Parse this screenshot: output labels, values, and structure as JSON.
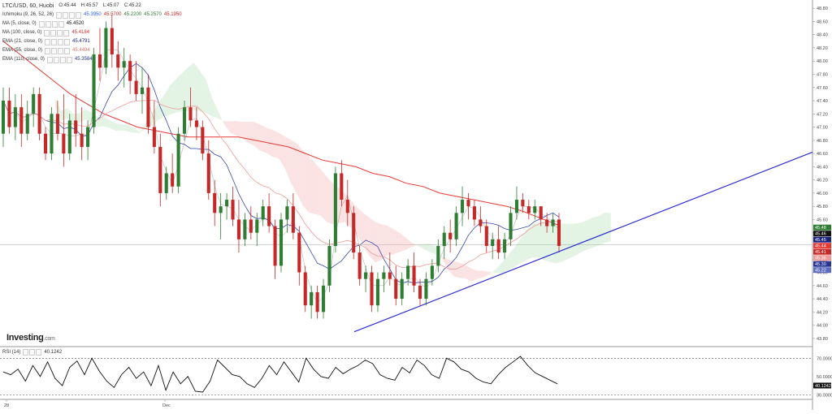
{
  "header": {
    "symbol": "LTC/USD, 60, Huobi",
    "open": "O:45.44",
    "high": "H:45.57",
    "low": "L:45.07",
    "close": "C:45.22"
  },
  "indicators": [
    {
      "label": "Ichimoku (9, 26, 52, 26)",
      "values": [
        {
          "v": "45.3950",
          "color": "#2962ff"
        },
        {
          "v": "45.5700",
          "color": "#c62828"
        },
        {
          "v": "45.2200",
          "color": "#2e7d32"
        },
        {
          "v": "45.2570",
          "color": "#2e7d32"
        },
        {
          "v": "45.1950",
          "color": "#c62828"
        }
      ]
    },
    {
      "label": "MA (5, close, 0)",
      "values": [
        {
          "v": "45.4520",
          "color": "#111111"
        }
      ]
    },
    {
      "label": "MA (100, close, 0)",
      "values": [
        {
          "v": "45.4184",
          "color": "#d32f2f"
        }
      ]
    },
    {
      "label": "EMA (21, close, 0)",
      "values": [
        {
          "v": "45.4791",
          "color": "#1a237e"
        }
      ]
    },
    {
      "label": "EMA (55, close, 0)",
      "values": [
        {
          "v": "45.4494",
          "color": "#e57373"
        }
      ]
    },
    {
      "label": "EMA (110, close, 0)",
      "values": [
        {
          "v": "45.3584",
          "color": "#283593"
        }
      ]
    }
  ],
  "logo": {
    "brand": "Investing",
    "suffix": ".com"
  },
  "rsi": {
    "label": "RSI (14)",
    "value": "40.1242",
    "ticks": [
      "70.0000",
      "50.0000",
      "30.0000"
    ],
    "badge": "40.1242"
  },
  "price_axis": {
    "ticks": [
      "48.80",
      "48.60",
      "48.40",
      "48.20",
      "48.00",
      "47.80",
      "47.60",
      "47.40",
      "47.20",
      "47.00",
      "46.80",
      "46.60",
      "46.40",
      "46.20",
      "46.00",
      "45.80",
      "45.60",
      "45.40",
      "45.20",
      "45.00",
      "44.80",
      "44.60",
      "44.40",
      "44.20",
      "44.00",
      "43.80"
    ],
    "badges": [
      {
        "label": "45.48",
        "color": "#2e7d32"
      },
      {
        "label": "45.46",
        "color": "#111111"
      },
      {
        "label": "45.45",
        "color": "#1a237e"
      },
      {
        "label": "45.44",
        "color": "#e53935"
      },
      {
        "label": "45.41",
        "color": "#c62828"
      },
      {
        "label": "45.36",
        "color": "#ef9a9a"
      },
      {
        "label": "45.30",
        "color": "#283593"
      },
      {
        "label": "45.22",
        "color": "#5c6bc0"
      }
    ]
  },
  "time_axis": {
    "labels": [
      "28",
      "Dec"
    ]
  },
  "chart_data": {
    "type": "candlestick",
    "ylim": [
      43.7,
      48.9
    ],
    "candles": [
      [
        46.9,
        47.6,
        46.7,
        47.4
      ],
      [
        47.4,
        47.6,
        46.9,
        47.0
      ],
      [
        47.0,
        47.5,
        46.8,
        47.3
      ],
      [
        47.3,
        47.5,
        46.7,
        46.9
      ],
      [
        46.9,
        47.4,
        46.8,
        47.2
      ],
      [
        47.2,
        47.6,
        47.0,
        47.5
      ],
      [
        47.5,
        47.6,
        46.8,
        46.9
      ],
      [
        46.9,
        47.0,
        46.5,
        46.6
      ],
      [
        46.6,
        47.3,
        46.5,
        47.2
      ],
      [
        47.2,
        47.4,
        46.8,
        46.9
      ],
      [
        46.9,
        47.5,
        46.4,
        46.6
      ],
      [
        46.6,
        47.2,
        46.5,
        47.1
      ],
      [
        47.1,
        47.5,
        46.7,
        46.9
      ],
      [
        46.9,
        47.3,
        46.5,
        46.7
      ],
      [
        46.7,
        47.1,
        46.5,
        47.0
      ],
      [
        47.0,
        48.2,
        46.9,
        48.1
      ],
      [
        48.1,
        48.5,
        47.7,
        47.9
      ],
      [
        47.9,
        48.6,
        47.8,
        48.5
      ],
      [
        48.5,
        48.7,
        47.9,
        48.1
      ],
      [
        48.1,
        48.3,
        47.7,
        47.9
      ],
      [
        47.9,
        48.2,
        47.6,
        48.0
      ],
      [
        48.0,
        48.1,
        47.5,
        47.7
      ],
      [
        47.7,
        48.0,
        47.4,
        47.5
      ],
      [
        47.5,
        47.9,
        47.2,
        47.6
      ],
      [
        47.6,
        47.8,
        46.9,
        47.0
      ],
      [
        47.0,
        47.4,
        46.6,
        46.7
      ],
      [
        46.7,
        46.9,
        45.8,
        46.0
      ],
      [
        46.0,
        46.4,
        45.9,
        46.3
      ],
      [
        46.3,
        46.6,
        46.0,
        46.1
      ],
      [
        46.1,
        47.0,
        46.0,
        46.9
      ],
      [
        46.9,
        47.4,
        46.8,
        47.3
      ],
      [
        47.3,
        47.6,
        47.0,
        47.1
      ],
      [
        47.1,
        47.3,
        46.8,
        47.0
      ],
      [
        47.0,
        47.1,
        46.5,
        46.6
      ],
      [
        46.6,
        46.8,
        45.9,
        46.0
      ],
      [
        46.0,
        46.2,
        45.5,
        45.7
      ],
      [
        45.7,
        46.0,
        45.3,
        45.8
      ],
      [
        45.8,
        46.0,
        45.6,
        45.9
      ],
      [
        45.9,
        46.1,
        45.5,
        45.6
      ],
      [
        45.6,
        45.9,
        45.1,
        45.3
      ],
      [
        45.3,
        45.7,
        45.2,
        45.6
      ],
      [
        45.6,
        45.8,
        45.3,
        45.4
      ],
      [
        45.4,
        45.7,
        45.2,
        45.6
      ],
      [
        45.6,
        45.9,
        45.5,
        45.8
      ],
      [
        45.8,
        46.0,
        45.4,
        45.5
      ],
      [
        45.5,
        45.6,
        44.7,
        44.9
      ],
      [
        44.9,
        45.7,
        44.8,
        45.6
      ],
      [
        45.6,
        45.9,
        45.4,
        45.8
      ],
      [
        45.8,
        46.0,
        45.3,
        45.4
      ],
      [
        45.4,
        45.5,
        44.6,
        44.8
      ],
      [
        44.8,
        44.9,
        44.2,
        44.3
      ],
      [
        44.3,
        44.6,
        44.1,
        44.5
      ],
      [
        44.5,
        44.6,
        44.1,
        44.2
      ],
      [
        44.2,
        44.7,
        44.1,
        44.6
      ],
      [
        44.6,
        45.3,
        44.5,
        45.2
      ],
      [
        45.2,
        46.4,
        45.1,
        46.3
      ],
      [
        46.3,
        46.5,
        45.8,
        45.9
      ],
      [
        45.9,
        46.2,
        45.5,
        45.7
      ],
      [
        45.7,
        45.8,
        45.0,
        45.1
      ],
      [
        45.1,
        45.2,
        44.6,
        44.7
      ],
      [
        44.7,
        44.9,
        44.5,
        44.8
      ],
      [
        44.8,
        44.9,
        44.2,
        44.3
      ],
      [
        44.3,
        44.8,
        44.2,
        44.7
      ],
      [
        44.7,
        44.9,
        44.5,
        44.8
      ],
      [
        44.8,
        45.1,
        44.6,
        44.7
      ],
      [
        44.7,
        44.9,
        44.3,
        44.4
      ],
      [
        44.4,
        44.8,
        44.3,
        44.7
      ],
      [
        44.7,
        45.0,
        44.6,
        44.9
      ],
      [
        44.9,
        45.1,
        44.5,
        44.6
      ],
      [
        44.6,
        44.7,
        44.3,
        44.4
      ],
      [
        44.4,
        44.8,
        44.3,
        44.7
      ],
      [
        44.7,
        45.0,
        44.6,
        44.9
      ],
      [
        44.9,
        45.3,
        44.8,
        45.2
      ],
      [
        45.2,
        45.5,
        45.0,
        45.4
      ],
      [
        45.4,
        45.6,
        45.1,
        45.3
      ],
      [
        45.3,
        45.8,
        45.2,
        45.7
      ],
      [
        45.7,
        46.1,
        45.5,
        45.9
      ],
      [
        45.9,
        46.0,
        45.6,
        45.8
      ],
      [
        45.8,
        45.9,
        45.5,
        45.6
      ],
      [
        45.6,
        45.8,
        45.4,
        45.5
      ],
      [
        45.5,
        45.6,
        45.1,
        45.2
      ],
      [
        45.2,
        45.4,
        45.0,
        45.3
      ],
      [
        45.3,
        45.5,
        45.0,
        45.1
      ],
      [
        45.1,
        45.4,
        45.0,
        45.3
      ],
      [
        45.3,
        45.8,
        45.2,
        45.7
      ],
      [
        45.7,
        46.1,
        45.6,
        45.9
      ],
      [
        45.9,
        46.0,
        45.7,
        45.8
      ],
      [
        45.8,
        45.9,
        45.6,
        45.7
      ],
      [
        45.7,
        45.9,
        45.6,
        45.8
      ],
      [
        45.8,
        45.8,
        45.5,
        45.6
      ],
      [
        45.6,
        45.7,
        45.4,
        45.5
      ],
      [
        45.5,
        45.7,
        45.4,
        45.6
      ],
      [
        45.6,
        45.7,
        45.1,
        45.2
      ]
    ],
    "trendline": [
      [
        43.9,
        45.4
      ]
    ],
    "ma100": [
      48.3,
      48.1,
      47.9,
      47.7,
      47.5,
      47.35,
      47.2,
      47.1,
      47.0,
      46.95,
      46.9,
      46.85,
      46.85,
      46.85,
      46.85,
      46.8,
      46.75,
      46.7,
      46.6,
      46.5,
      46.45,
      46.4,
      46.3,
      46.25,
      46.15,
      46.1,
      46.0,
      45.95,
      45.9,
      45.85,
      45.8,
      45.72,
      45.62,
      45.52
    ],
    "rsi_series": [
      55,
      52,
      58,
      45,
      62,
      50,
      66,
      48,
      40,
      60,
      67,
      52,
      70,
      56,
      45,
      38,
      52,
      60,
      48,
      55,
      40,
      62,
      35,
      55,
      42,
      50,
      34,
      33,
      45,
      68,
      60,
      52,
      50,
      42,
      38,
      48,
      62,
      52,
      66,
      55,
      44,
      70,
      58,
      50,
      48,
      60,
      53,
      58,
      62,
      68,
      64,
      52,
      48,
      46,
      60,
      54,
      68,
      62,
      52,
      48,
      70,
      66,
      58,
      55,
      48,
      44,
      42,
      52,
      60,
      66,
      72,
      62,
      54,
      50,
      46,
      42
    ]
  }
}
